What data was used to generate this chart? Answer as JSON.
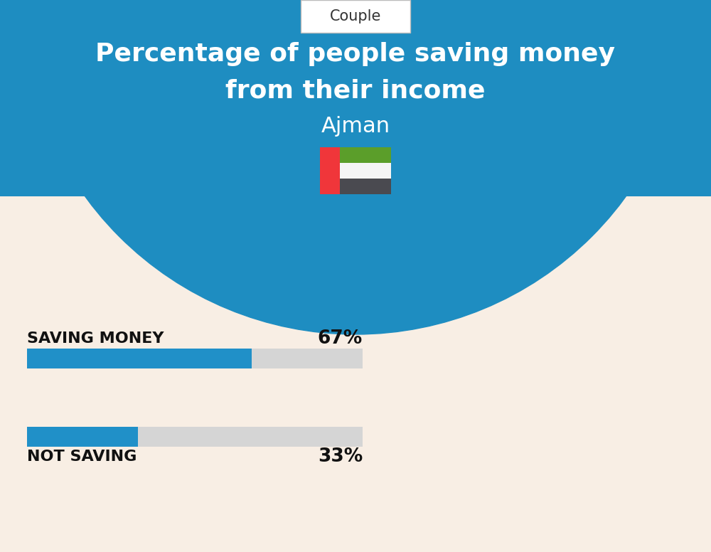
{
  "title_line1": "Percentage of people saving money",
  "title_line2": "from their income",
  "subtitle": "Ajman",
  "tab_label": "Couple",
  "bar1_label": "SAVING MONEY",
  "bar1_value": 67,
  "bar1_pct": "67%",
  "bar2_label": "NOT SAVING",
  "bar2_value": 33,
  "bar2_pct": "33%",
  "bar_color": "#2090C8",
  "bar_bg_color": "#D5D5D5",
  "header_bg_color": "#1E8DC1",
  "page_bg_color": "#F8EEE4",
  "title_color": "#FFFFFF",
  "subtitle_color": "#FFFFFF",
  "tab_bg_color": "#FFFFFF",
  "tab_text_color": "#333333",
  "bar_label_color": "#111111",
  "pct_color": "#111111",
  "title_fontsize": 26,
  "subtitle_fontsize": 22,
  "tab_fontsize": 15,
  "bar_label_fontsize": 16,
  "pct_fontsize": 19,
  "flag_red": "#F0363A",
  "flag_green": "#5B9E2A",
  "flag_white": "#F5F5F5",
  "flag_black": "#4A4A50"
}
